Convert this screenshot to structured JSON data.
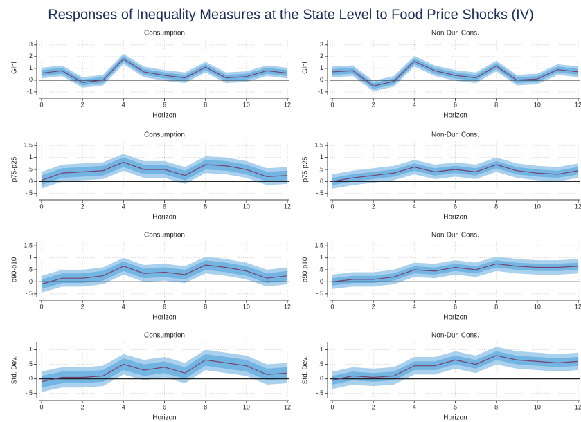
{
  "title": "Responses of Inequality Measures at the State Level to Food Price Shocks (IV)",
  "chart_data": [
    {
      "type": "line",
      "title": "Consumption",
      "xlabel": "Horizon",
      "ylabel": "Gini",
      "grid": true,
      "x": [
        0,
        1,
        2,
        3,
        4,
        5,
        6,
        7,
        8,
        9,
        10,
        11,
        12
      ],
      "xlim": [
        -0.1,
        12.1
      ],
      "xticks": [
        0,
        2,
        4,
        6,
        8,
        10,
        12
      ],
      "ylim": [
        -1.3,
        3.4
      ],
      "yticks": [
        -1,
        0,
        1,
        2,
        3
      ],
      "bands": [
        {
          "color": "#a9d0ec",
          "lower": [
            0.15,
            0.35,
            -0.65,
            -0.45,
            1.35,
            0.25,
            -0.05,
            -0.25,
            0.65,
            -0.25,
            -0.15,
            0.35,
            0.15
          ],
          "upper": [
            1.05,
            1.25,
            0.25,
            0.45,
            2.25,
            1.15,
            0.85,
            0.65,
            1.55,
            0.65,
            0.75,
            1.25,
            1.05
          ]
        },
        {
          "color": "#72b4e2",
          "lower": [
            0.35,
            0.55,
            -0.45,
            -0.25,
            1.55,
            0.45,
            0.15,
            -0.05,
            0.85,
            -0.05,
            0.05,
            0.55,
            0.35
          ],
          "upper": [
            0.85,
            1.05,
            0.05,
            0.25,
            2.05,
            0.95,
            0.65,
            0.45,
            1.35,
            0.45,
            0.55,
            1.05,
            0.85
          ]
        }
      ],
      "series": [
        {
          "color": "#7a4270",
          "values": [
            0.6,
            0.8,
            -0.2,
            0,
            1.8,
            0.7,
            0.4,
            0.2,
            1.1,
            0.2,
            0.3,
            0.8,
            0.6
          ]
        }
      ]
    },
    {
      "type": "line",
      "title": "Non-Dur. Cons.",
      "xlabel": "Horizon",
      "ylabel": "Gini",
      "grid": true,
      "x": [
        0,
        1,
        2,
        3,
        4,
        5,
        6,
        7,
        8,
        9,
        10,
        11,
        12
      ],
      "xlim": [
        -0.1,
        12.1
      ],
      "xticks": [
        0,
        2,
        4,
        6,
        8,
        10,
        12
      ],
      "ylim": [
        -1.3,
        3.4
      ],
      "yticks": [
        -1,
        0,
        1,
        2,
        3
      ],
      "bands": [
        {
          "color": "#a9d0ec",
          "lower": [
            0.25,
            0.35,
            -0.95,
            -0.55,
            1.15,
            0.35,
            -0.05,
            -0.25,
            0.75,
            -0.45,
            -0.35,
            0.45,
            0.25
          ],
          "upper": [
            1.15,
            1.25,
            -0.05,
            0.35,
            2.05,
            1.25,
            0.85,
            0.65,
            1.65,
            0.45,
            0.55,
            1.35,
            1.15
          ]
        },
        {
          "color": "#72b4e2",
          "lower": [
            0.45,
            0.55,
            -0.75,
            -0.35,
            1.35,
            0.55,
            0.15,
            -0.05,
            0.95,
            -0.25,
            -0.15,
            0.65,
            0.45
          ],
          "upper": [
            0.95,
            1.05,
            -0.25,
            0.15,
            1.85,
            1.05,
            0.65,
            0.45,
            1.45,
            0.25,
            0.35,
            1.15,
            0.95
          ]
        }
      ],
      "series": [
        {
          "color": "#7a4270",
          "values": [
            0.7,
            0.8,
            -0.5,
            -0.1,
            1.6,
            0.8,
            0.4,
            0.2,
            1.2,
            0,
            0.1,
            0.9,
            0.7
          ]
        }
      ]
    },
    {
      "type": "line",
      "title": "Consumption",
      "xlabel": "Horizon",
      "ylabel": "p75-p25",
      "grid": true,
      "x": [
        0,
        1,
        2,
        3,
        4,
        5,
        6,
        7,
        8,
        9,
        10,
        11,
        12
      ],
      "xlim": [
        -0.1,
        12.1
      ],
      "xticks": [
        0,
        2,
        4,
        6,
        8,
        10,
        12
      ],
      "ylim": [
        -0.65,
        1.65
      ],
      "yticks": [
        {
          "value": -0.5,
          "label": "-.5"
        },
        0,
        {
          "value": 0.5,
          "label": ".5"
        },
        1,
        1.5
      ],
      "bands": [
        {
          "color": "#a9d0ec",
          "lower": [
            -0.3,
            0,
            0.05,
            0.1,
            0.45,
            0.15,
            0.15,
            -0.1,
            0.35,
            0.3,
            0.15,
            -0.15,
            -0.1
          ],
          "upper": [
            0.4,
            0.7,
            0.75,
            0.8,
            1.15,
            0.85,
            0.85,
            0.6,
            1.05,
            1,
            0.85,
            0.55,
            0.6
          ]
        },
        {
          "color": "#72b4e2",
          "lower": [
            -0.15,
            0.15,
            0.2,
            0.25,
            0.6,
            0.3,
            0.3,
            0.05,
            0.5,
            0.45,
            0.3,
            0,
            0.05
          ],
          "upper": [
            0.25,
            0.55,
            0.6,
            0.65,
            1,
            0.7,
            0.7,
            0.45,
            0.9,
            0.85,
            0.7,
            0.4,
            0.45
          ]
        }
      ],
      "series": [
        {
          "color": "#7a4270",
          "values": [
            0.05,
            0.35,
            0.4,
            0.45,
            0.8,
            0.5,
            0.5,
            0.25,
            0.7,
            0.65,
            0.5,
            0.2,
            0.25
          ]
        }
      ]
    },
    {
      "type": "line",
      "title": "Non-Dur. Cons.",
      "xlabel": "Horizon",
      "ylabel": "p75-p25",
      "grid": true,
      "x": [
        0,
        1,
        2,
        3,
        4,
        5,
        6,
        7,
        8,
        9,
        10,
        11,
        12
      ],
      "xlim": [
        -0.1,
        12.1
      ],
      "xticks": [
        0,
        2,
        4,
        6,
        8,
        10,
        12
      ],
      "ylim": [
        -0.65,
        1.65
      ],
      "yticks": [
        {
          "value": -0.5,
          "label": "-.5"
        },
        0,
        {
          "value": 0.5,
          "label": ".5"
        },
        1,
        1.5
      ],
      "bands": [
        {
          "color": "#a9d0ec",
          "lower": [
            -0.3,
            -0.15,
            -0.05,
            0.05,
            0.3,
            0.1,
            0.2,
            0.1,
            0.4,
            0.15,
            0.05,
            0,
            0.15
          ],
          "upper": [
            0.3,
            0.45,
            0.55,
            0.65,
            0.9,
            0.7,
            0.8,
            0.7,
            1,
            0.75,
            0.65,
            0.6,
            0.75
          ]
        },
        {
          "color": "#72b4e2",
          "lower": [
            -0.15,
            0,
            0.1,
            0.2,
            0.45,
            0.25,
            0.35,
            0.25,
            0.55,
            0.3,
            0.2,
            0.15,
            0.3
          ],
          "upper": [
            0.15,
            0.3,
            0.4,
            0.5,
            0.75,
            0.55,
            0.65,
            0.55,
            0.85,
            0.6,
            0.5,
            0.45,
            0.6
          ]
        }
      ],
      "series": [
        {
          "color": "#7a4270",
          "values": [
            0,
            0.15,
            0.25,
            0.35,
            0.6,
            0.4,
            0.5,
            0.4,
            0.7,
            0.45,
            0.35,
            0.3,
            0.45
          ]
        }
      ]
    },
    {
      "type": "line",
      "title": "Consumption",
      "xlabel": "Horizon",
      "ylabel": "p90-p10",
      "grid": true,
      "x": [
        0,
        1,
        2,
        3,
        4,
        5,
        6,
        7,
        8,
        9,
        10,
        11,
        12
      ],
      "xlim": [
        -0.1,
        12.1
      ],
      "xticks": [
        0,
        2,
        4,
        6,
        8,
        10,
        12
      ],
      "ylim": [
        -0.65,
        1.65
      ],
      "yticks": [
        {
          "value": -0.5,
          "label": "-.5"
        },
        0,
        {
          "value": 0.5,
          "label": ".5"
        },
        1,
        1.5
      ],
      "bands": [
        {
          "color": "#a9d0ec",
          "lower": [
            -0.45,
            -0.2,
            -0.2,
            -0.1,
            0.3,
            0,
            0.05,
            -0.05,
            0.35,
            0.25,
            0.1,
            -0.2,
            -0.1
          ],
          "upper": [
            0.25,
            0.5,
            0.5,
            0.6,
            1,
            0.7,
            0.75,
            0.65,
            1.05,
            0.95,
            0.8,
            0.5,
            0.6
          ]
        },
        {
          "color": "#72b4e2",
          "lower": [
            -0.3,
            -0.05,
            -0.05,
            0.05,
            0.45,
            0.15,
            0.2,
            0.1,
            0.5,
            0.4,
            0.25,
            -0.05,
            0.05
          ],
          "upper": [
            0.1,
            0.35,
            0.35,
            0.45,
            0.85,
            0.55,
            0.6,
            0.5,
            0.9,
            0.8,
            0.65,
            0.35,
            0.45
          ]
        }
      ],
      "series": [
        {
          "color": "#7a4270",
          "values": [
            -0.1,
            0.15,
            0.15,
            0.25,
            0.65,
            0.35,
            0.4,
            0.3,
            0.7,
            0.6,
            0.45,
            0.15,
            0.25
          ]
        }
      ]
    },
    {
      "type": "line",
      "title": "Non-Dur. Cons.",
      "xlabel": "Horizon",
      "ylabel": "p90-p10",
      "grid": true,
      "x": [
        0,
        1,
        2,
        3,
        4,
        5,
        6,
        7,
        8,
        9,
        10,
        11,
        12
      ],
      "xlim": [
        -0.1,
        12.1
      ],
      "xticks": [
        0,
        2,
        4,
        6,
        8,
        10,
        12
      ],
      "ylim": [
        -0.65,
        1.65
      ],
      "yticks": [
        {
          "value": -0.5,
          "label": "-.5"
        },
        0,
        {
          "value": 0.5,
          "label": ".5"
        },
        1,
        1.5
      ],
      "bands": [
        {
          "color": "#a9d0ec",
          "lower": [
            -0.3,
            -0.2,
            -0.2,
            -0.1,
            0.2,
            0.15,
            0.3,
            0.2,
            0.45,
            0.35,
            0.3,
            0.3,
            0.35
          ],
          "upper": [
            0.3,
            0.4,
            0.4,
            0.5,
            0.8,
            0.75,
            0.9,
            0.8,
            1.05,
            0.95,
            0.9,
            0.9,
            0.95
          ]
        },
        {
          "color": "#72b4e2",
          "lower": [
            -0.15,
            -0.05,
            -0.05,
            0.05,
            0.35,
            0.3,
            0.45,
            0.35,
            0.6,
            0.5,
            0.45,
            0.45,
            0.5
          ],
          "upper": [
            0.15,
            0.25,
            0.25,
            0.35,
            0.65,
            0.6,
            0.75,
            0.65,
            0.9,
            0.8,
            0.75,
            0.75,
            0.8
          ]
        }
      ],
      "series": [
        {
          "color": "#7a4270",
          "values": [
            0,
            0.1,
            0.1,
            0.2,
            0.5,
            0.45,
            0.6,
            0.5,
            0.75,
            0.65,
            0.6,
            0.6,
            0.65
          ]
        }
      ]
    },
    {
      "type": "line",
      "title": "Consumption",
      "xlabel": "Horizon",
      "ylabel": "Std. Dev.",
      "grid": true,
      "x": [
        0,
        1,
        2,
        3,
        4,
        5,
        6,
        7,
        8,
        9,
        10,
        11,
        12
      ],
      "xlim": [
        -0.1,
        12.1
      ],
      "xticks": [
        0,
        2,
        4,
        6,
        8,
        10,
        12
      ],
      "ylim": [
        -0.65,
        1.25
      ],
      "yticks": [
        {
          "value": -0.5,
          "label": "-.5"
        },
        0,
        {
          "value": 0.5,
          "label": ".5"
        },
        1
      ],
      "bands": [
        {
          "color": "#a9d0ec",
          "lower": [
            -0.45,
            -0.3,
            -0.3,
            -0.25,
            0.15,
            -0.05,
            0.05,
            -0.15,
            0.3,
            0.2,
            0.1,
            -0.2,
            -0.15
          ],
          "upper": [
            0.25,
            0.4,
            0.4,
            0.45,
            0.85,
            0.65,
            0.75,
            0.55,
            1,
            0.9,
            0.8,
            0.5,
            0.55
          ]
        },
        {
          "color": "#72b4e2",
          "lower": [
            -0.3,
            -0.15,
            -0.15,
            -0.1,
            0.3,
            0.1,
            0.2,
            0,
            0.45,
            0.35,
            0.25,
            -0.05,
            0
          ],
          "upper": [
            0.1,
            0.25,
            0.25,
            0.3,
            0.7,
            0.5,
            0.6,
            0.4,
            0.85,
            0.75,
            0.65,
            0.35,
            0.4
          ]
        }
      ],
      "series": [
        {
          "color": "#7a4270",
          "values": [
            -0.1,
            0.05,
            0.05,
            0.1,
            0.5,
            0.3,
            0.4,
            0.2,
            0.65,
            0.55,
            0.45,
            0.15,
            0.2
          ]
        }
      ]
    },
    {
      "type": "line",
      "title": "Non-Dur. Cons.",
      "xlabel": "Horizon",
      "ylabel": "Std. Dev.",
      "grid": true,
      "x": [
        0,
        1,
        2,
        3,
        4,
        5,
        6,
        7,
        8,
        9,
        10,
        11,
        12
      ],
      "xlim": [
        -0.1,
        12.1
      ],
      "xticks": [
        0,
        2,
        4,
        6,
        8,
        10,
        12
      ],
      "ylim": [
        -0.65,
        1.25
      ],
      "yticks": [
        {
          "value": -0.5,
          "label": "-.5"
        },
        0,
        {
          "value": 0.5,
          "label": ".5"
        },
        1
      ],
      "bands": [
        {
          "color": "#a9d0ec",
          "lower": [
            -0.35,
            -0.2,
            -0.25,
            -0.2,
            0.15,
            0.15,
            0.35,
            0.2,
            0.5,
            0.35,
            0.3,
            0.25,
            0.3
          ],
          "upper": [
            0.25,
            0.4,
            0.35,
            0.4,
            0.75,
            0.75,
            0.95,
            0.8,
            1.1,
            0.95,
            0.9,
            0.85,
            0.9
          ]
        },
        {
          "color": "#72b4e2",
          "lower": [
            -0.2,
            -0.05,
            -0.1,
            -0.05,
            0.3,
            0.3,
            0.5,
            0.35,
            0.65,
            0.5,
            0.45,
            0.4,
            0.45
          ],
          "upper": [
            0.1,
            0.25,
            0.2,
            0.25,
            0.6,
            0.6,
            0.8,
            0.65,
            0.95,
            0.8,
            0.75,
            0.7,
            0.75
          ]
        }
      ],
      "series": [
        {
          "color": "#7a4270",
          "values": [
            -0.05,
            0.1,
            0.05,
            0.1,
            0.45,
            0.45,
            0.65,
            0.5,
            0.8,
            0.65,
            0.6,
            0.55,
            0.6
          ]
        }
      ]
    }
  ]
}
